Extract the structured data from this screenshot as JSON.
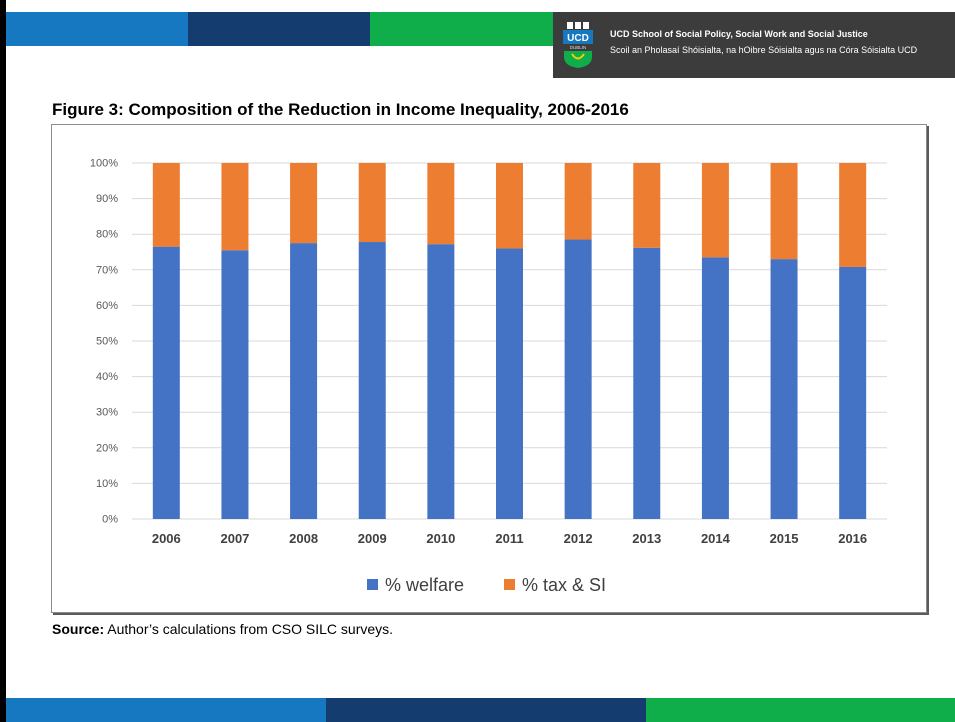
{
  "header": {
    "line1": "UCD School of Social Policy, Social Work and Social Justice",
    "line2": "Scoil an Pholasaí Shóisialta, na hOibre Sóisialta agus na Córa Sóisialta UCD",
    "logo_text": "UCD",
    "logo_subtext": "DUBLIN"
  },
  "colors": {
    "blue_light": "#1778c2",
    "blue_dark": "#153c6e",
    "green": "#0fae4b",
    "welfare": "#4472c4",
    "tax": "#ed7d31",
    "header_bg": "#3c3c3c"
  },
  "chart_data": {
    "type": "bar",
    "stacked": true,
    "title": "Figure 3: Composition of the Reduction in Income Inequality, 2006-2016",
    "categories": [
      "2006",
      "2007",
      "2008",
      "2009",
      "2010",
      "2011",
      "2012",
      "2013",
      "2014",
      "2015",
      "2016"
    ],
    "series": [
      {
        "name": "% welfare",
        "values": [
          76.5,
          75.5,
          77.5,
          77.8,
          77.2,
          76.0,
          78.5,
          76.2,
          73.5,
          73.0,
          70.8
        ]
      },
      {
        "name": "% tax & SI",
        "values": [
          23.5,
          24.5,
          22.5,
          22.2,
          22.8,
          24.0,
          21.5,
          23.8,
          26.5,
          27.0,
          29.2
        ]
      }
    ],
    "ylim": [
      0,
      100
    ],
    "yticks": [
      "0%",
      "10%",
      "20%",
      "30%",
      "40%",
      "50%",
      "60%",
      "70%",
      "80%",
      "90%",
      "100%"
    ],
    "grid": true,
    "legend": "bottom"
  },
  "source": {
    "label": "Source:",
    "text": " Author’s calculations from CSO SILC surveys."
  }
}
